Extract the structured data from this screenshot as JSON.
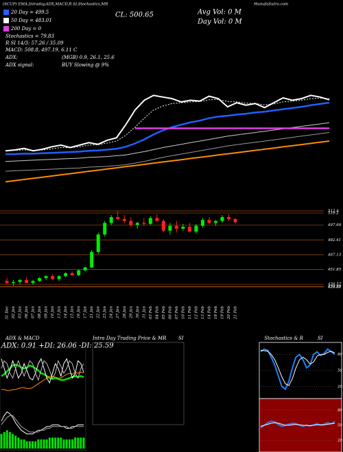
{
  "header": {
    "top_line": "(SCUP) EMA,Intraday,ADX,MACD,R SI,Stochastics,MR",
    "site": "MunafaSutra.com",
    "ma": [
      {
        "label": "20 Day = 499.5",
        "color": "#2060ff"
      },
      {
        "label": "50 Day = 483.01",
        "color": "#ffffff"
      },
      {
        "label": "200 Day = 0",
        "color": "#e040e0"
      }
    ],
    "stochastics": "Stochastics = 79.83",
    "rsi": "R   SI 14/3: 57.26 / 35.09",
    "macd": "MACD: 508.8, 497.19, 6.11 C",
    "adx_label": "ADX:",
    "adx_value": "(MGB) 0.9, 26.1, 25.6",
    "adx_signal_label": "ADX  signal:",
    "adx_signal": "BUY Slowing @ 9%",
    "close": "CL: 500.65",
    "avg_vol": "Avg Vol: 0   M",
    "day_vol": "Day Vol: 0   M"
  },
  "chart_data": [
    {
      "type": "line",
      "ylim": [
        371,
        623
      ],
      "series": [
        {
          "name": "EMA fast",
          "color": "#ffffff",
          "dash": true,
          "values": [
            438,
            438.5,
            439,
            438.5,
            439,
            440.5,
            442,
            442,
            443,
            445,
            445.5,
            447.5,
            450,
            457,
            467,
            478,
            488,
            493,
            496,
            497,
            498,
            498.5,
            500.5,
            501,
            498.5,
            498,
            496.5,
            496,
            494.5,
            495.5,
            498,
            499,
            500,
            502,
            502.7,
            502
          ]
        },
        {
          "name": "EMA 20",
          "color": "#2060ff",
          "width": 2.5,
          "values": [
            434,
            434,
            434.5,
            434.5,
            435,
            435.5,
            436,
            436.5,
            437,
            438,
            438.5,
            439.5,
            440.5,
            443,
            447,
            452,
            458,
            463,
            467,
            470,
            473,
            475,
            478,
            480,
            481,
            482.5,
            483.5,
            485,
            486,
            487.5,
            489,
            490.5,
            492,
            494,
            495.5,
            497
          ]
        },
        {
          "name": "EMA 50 upper",
          "color": "#cccccc",
          "values": [
            425,
            425.5,
            426,
            426.5,
            427,
            427.5,
            428,
            428.5,
            429,
            430,
            430.5,
            431,
            432,
            433,
            435,
            437,
            439.5,
            442,
            444,
            446,
            448,
            450,
            452,
            454,
            456,
            457.5,
            459,
            460.5,
            462,
            463.5,
            465,
            466.5,
            468,
            469.5,
            471,
            472.5
          ]
        },
        {
          "name": "EMA 50 lower",
          "color": "#999999",
          "values": [
            413,
            413.5,
            414,
            414.5,
            415,
            415.5,
            416,
            416.5,
            417,
            418,
            418.5,
            419,
            420,
            421,
            423,
            425,
            427.5,
            430,
            432,
            434,
            436,
            438,
            440,
            442,
            444,
            445.5,
            447,
            448.5,
            450,
            451.5,
            453,
            454.5,
            456,
            457.5,
            459,
            460.5
          ]
        },
        {
          "name": "EMA 200",
          "color": "#ff8c00",
          "width": 2,
          "values": [
            400,
            401.4,
            402.9,
            404.3,
            405.7,
            407.1,
            408.6,
            410,
            411.4,
            412.9,
            414.3,
            415.7,
            417.1,
            418.6,
            420,
            421.4,
            422.9,
            424.3,
            425.7,
            427.1,
            428.6,
            430,
            431.4,
            432.9,
            434.3,
            435.7,
            437.1,
            438.6,
            440,
            441.4,
            442.9,
            444.3,
            445.7,
            447.1,
            448.6,
            450
          ]
        },
        {
          "name": "Magenta",
          "color": "#e040e0",
          "width": 2.5,
          "values": [
            null,
            null,
            null,
            null,
            null,
            null,
            null,
            null,
            null,
            null,
            null,
            null,
            null,
            null,
            465.6,
            465.6,
            465.6,
            465.6,
            465.6,
            465.6,
            465.6,
            465.6,
            465.6,
            465.6,
            465.6,
            465.6,
            465.6,
            465.6,
            465.6,
            465.6,
            465.6,
            465.6,
            465.6,
            465.6,
            465.6,
            465.6
          ]
        }
      ]
    },
    {
      "type": "candlestick",
      "ylim": [
        419,
        518
      ],
      "yticks": [
        512.4,
        510.2,
        497.69,
        482.41,
        467.13,
        451.85,
        436.57,
        434.37,
        433.88
      ],
      "categories": [
        "31 Dec",
        "02 Jan",
        "03 Jan",
        "06 Jan",
        "07 Jan",
        "08 Jan",
        "09 Jan",
        "10 Jan",
        "13 Jan",
        "14 Jan",
        "15 Jan",
        "16 Jan",
        "17 Jan",
        "21 Jan",
        "22 Jan",
        "23 Jan",
        "24 Jan",
        "27 Jan",
        "28 Jan",
        "29 Jan",
        "30 Jan",
        "31 Jan",
        "03 Feb",
        "04 Feb",
        "05 Feb",
        "06 Feb",
        "07 Feb",
        "10 Feb",
        "11 Feb",
        "12 Feb",
        "13 Feb",
        "14 Feb",
        "18 Feb",
        "19 Feb",
        "20 Feb",
        "21 Feb"
      ],
      "open": [
        440,
        438,
        439,
        441,
        438,
        440,
        443,
        445,
        442,
        445,
        448,
        446,
        451,
        454,
        470,
        488,
        500,
        506,
        504,
        502,
        498,
        500,
        499,
        505,
        502,
        492,
        497,
        494,
        496,
        491,
        497,
        503,
        500,
        502,
        506,
        504
      ],
      "high": [
        443,
        441,
        442,
        444,
        441,
        444,
        446,
        447,
        446,
        449,
        450,
        452,
        455,
        472,
        490,
        502,
        508,
        512,
        508,
        506,
        501,
        505,
        507,
        509,
        504,
        500,
        502,
        499,
        500,
        499,
        505,
        506,
        503,
        508,
        509,
        505
      ],
      "low": [
        436,
        435,
        437,
        438,
        436,
        439,
        441,
        441,
        440,
        444,
        445,
        445,
        450,
        453,
        468,
        486,
        498,
        503,
        500,
        496,
        494,
        497,
        498,
        501,
        490,
        488,
        490,
        492,
        490,
        489,
        495,
        499,
        497,
        500,
        502,
        499
      ],
      "close": [
        438,
        439,
        441,
        438,
        440,
        443,
        445,
        442,
        445,
        448,
        446,
        451,
        454,
        470,
        488,
        500,
        506,
        504,
        502,
        498,
        500,
        499,
        505,
        502,
        492,
        497,
        494,
        496,
        491,
        497,
        503,
        500,
        502,
        506,
        504,
        500.65
      ],
      "up_color": "#00ee00",
      "down_color": "#ff2020"
    },
    {
      "type": "line",
      "title": "ADX  & MACD",
      "annotation": "ADX: 0.91  +DI: 26.06  -DI: 25.59",
      "ylim": [
        0,
        50
      ],
      "series": [
        {
          "name": "+DI",
          "color": "#00e000",
          "width": 2.5,
          "values": [
            22,
            24,
            27,
            30,
            33,
            34,
            33,
            31,
            30,
            31,
            33,
            32,
            30,
            28,
            25,
            24,
            22,
            20,
            19,
            20,
            19,
            18,
            18,
            19,
            20,
            21,
            22,
            21,
            22,
            21
          ]
        },
        {
          "name": "-DI",
          "color": "#ff8c00",
          "values": [
            8,
            8,
            7,
            7,
            8,
            8,
            9,
            10,
            10,
            9,
            9,
            10,
            12,
            14,
            16,
            18,
            20,
            22,
            22,
            21,
            20,
            20,
            22,
            24,
            25,
            24,
            26,
            25,
            26,
            25.6
          ]
        },
        {
          "name": "ADX",
          "color": "#ffffff",
          "values": [
            40,
            30,
            20,
            28,
            38,
            30,
            20,
            25,
            35,
            28,
            20,
            18,
            25,
            35,
            40,
            30,
            20,
            15,
            25,
            35,
            30,
            22,
            35,
            40,
            30,
            20,
            25,
            38,
            35,
            26
          ]
        },
        {
          "name": "ADX 2",
          "color": "#bbbbbb",
          "values": [
            30,
            38,
            35,
            25,
            20,
            30,
            38,
            30,
            22,
            30,
            38,
            35,
            25,
            18,
            28,
            38,
            35,
            28,
            20,
            25,
            38,
            32,
            25,
            30,
            38,
            35,
            25,
            20,
            30,
            35
          ]
        }
      ]
    },
    {
      "type": "line",
      "ylim": [
        0,
        25
      ],
      "series": [
        {
          "name": "Hist",
          "color": "#00e000",
          "bars": true,
          "values": [
            8,
            9,
            10,
            9,
            8,
            7,
            6,
            5,
            5,
            4,
            4,
            4,
            4,
            5,
            5,
            5,
            5,
            6,
            6,
            6,
            6,
            6,
            5,
            5,
            5,
            5,
            6,
            6,
            6,
            6
          ]
        },
        {
          "name": "MACD",
          "color": "#ffffff",
          "values": [
            15,
            18,
            20,
            19,
            17,
            14,
            12,
            10,
            9,
            8,
            8,
            8,
            9,
            10,
            10,
            11,
            12,
            12,
            13,
            13,
            13,
            12,
            12,
            11,
            11,
            12,
            12,
            13,
            13,
            13
          ]
        },
        {
          "name": "Signal",
          "color": "#aaaaaa",
          "values": [
            13,
            15,
            17,
            18,
            18,
            16,
            14,
            12,
            11,
            10,
            9,
            9,
            9,
            9,
            10,
            10,
            11,
            11,
            12,
            12,
            12,
            12,
            12,
            12,
            11,
            11,
            12,
            12,
            12,
            12
          ]
        }
      ]
    },
    {
      "type": "box",
      "title": "Intra Day Trading Price  & MR",
      "title2": "SI"
    },
    {
      "type": "line",
      "title": "Stochastics & R",
      "title2": "SI",
      "ylim": [
        0,
        100
      ],
      "yticks": [
        80,
        50,
        20
      ],
      "bg": "#000000",
      "series": [
        {
          "name": "%K",
          "color": "#2080ff",
          "width": 2,
          "values": [
            85,
            90,
            88,
            75,
            60,
            40,
            20,
            15,
            30,
            55,
            75,
            80,
            70,
            55,
            60,
            80,
            85,
            78,
            82,
            90,
            85,
            80
          ]
        },
        {
          "name": "%D",
          "color": "#ffffff",
          "values": [
            88,
            87,
            86,
            80,
            70,
            55,
            38,
            25,
            22,
            35,
            55,
            70,
            75,
            70,
            62,
            66,
            77,
            80,
            80,
            84,
            86,
            83
          ]
        }
      ]
    },
    {
      "type": "line",
      "ylim": [
        0,
        100
      ],
      "yticks": [
        80,
        50,
        20
      ],
      "bg": "#8b0000",
      "series": [
        {
          "name": "RSI",
          "color": "#2080ff",
          "width": 2,
          "values": [
            45,
            50,
            55,
            58,
            57,
            52,
            48,
            50,
            52,
            54,
            53,
            50,
            48,
            50,
            49,
            51,
            53,
            50,
            52,
            55,
            53,
            57.26
          ]
        },
        {
          "name": "RSI avg",
          "color": "#ffffff",
          "values": [
            48,
            50,
            52,
            54,
            55,
            54,
            52,
            50,
            50,
            51,
            52,
            51,
            50,
            50,
            49,
            50,
            51,
            51,
            51,
            52,
            53,
            54
          ]
        }
      ]
    }
  ]
}
